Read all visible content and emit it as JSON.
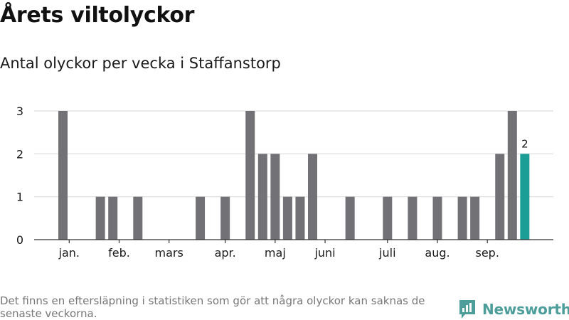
{
  "title": "Årets viltolyckor",
  "subtitle": "Antal olyckor per vecka i Staffanstorp",
  "footnote": "Det finns en eftersläpning i statistiken som gör att några olyckor kan saknas de senaste veckorna.",
  "brand": {
    "name": "Newsworthy",
    "icon": "newsworthy-logo-icon"
  },
  "colors": {
    "bar": "#727176",
    "highlight": "#1a9e96",
    "grid": "#dddddd",
    "axis": "#333333",
    "brand": "#4d9e9a"
  },
  "chart_data": {
    "type": "bar",
    "x": [
      1,
      2,
      3,
      4,
      5,
      6,
      7,
      8,
      9,
      10,
      11,
      12,
      13,
      14,
      15,
      16,
      17,
      18,
      19,
      20,
      21,
      22,
      23,
      24,
      25,
      26,
      27,
      28,
      29,
      30,
      31,
      32,
      33,
      34,
      35,
      36,
      37,
      38
    ],
    "values": [
      3,
      0,
      0,
      1,
      1,
      0,
      1,
      0,
      0,
      0,
      0,
      1,
      0,
      1,
      0,
      3,
      2,
      2,
      1,
      1,
      2,
      0,
      0,
      1,
      0,
      0,
      1,
      0,
      1,
      0,
      1,
      0,
      1,
      1,
      0,
      2,
      3,
      2
    ],
    "highlight_index": 37,
    "highlight_label": "2",
    "month_labels": [
      "jan.",
      "feb.",
      "mars",
      "apr.",
      "maj",
      "juni",
      "juli",
      "aug.",
      "sep."
    ],
    "month_label_weeks": [
      1.5,
      5.5,
      9.5,
      14,
      18,
      22,
      27,
      31,
      35
    ],
    "yticks": [
      0,
      1,
      2,
      3
    ],
    "ylim": [
      0,
      3
    ],
    "grid": true,
    "xlabel": "",
    "ylabel": ""
  }
}
